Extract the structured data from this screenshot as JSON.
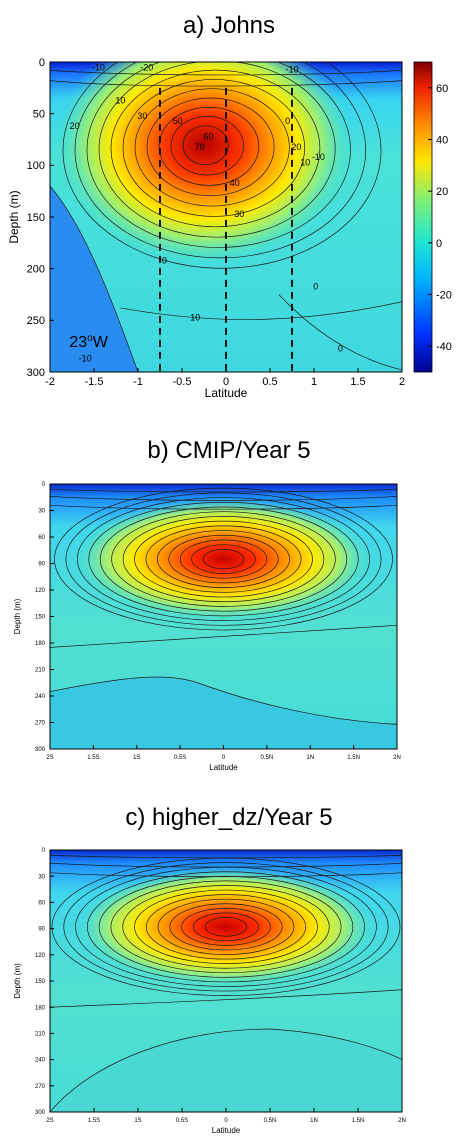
{
  "chart_data": [
    {
      "type": "heatmap",
      "subtype": "filled-contour",
      "title": "a) Johns",
      "xlabel": "Latitude",
      "ylabel": "Depth (m)",
      "xlim": [
        -2,
        2
      ],
      "ylim": [
        300,
        0
      ],
      "x_ticks": [
        "-2",
        "-1.5",
        "-1",
        "-0.5",
        "0",
        "0.5",
        "1",
        "1.5",
        "2"
      ],
      "y_ticks": [
        "0",
        "50",
        "100",
        "150",
        "200",
        "250",
        "300"
      ],
      "colorbar": {
        "ticks": [
          "60",
          "40",
          "20",
          "0",
          "-20",
          "-40"
        ],
        "range": [
          -50,
          70
        ]
      },
      "core": {
        "lat": -0.25,
        "depth": 80,
        "value": 70
      },
      "contour_labels": [
        "-10",
        "-20",
        "-10",
        "10",
        "30",
        "50",
        "60",
        "70",
        "40",
        "30",
        "20",
        "10",
        "0",
        "-10",
        "20",
        "10",
        "0",
        "0",
        "0",
        "-10"
      ],
      "annotation": "23",
      "annotation_sup": "o",
      "annotation_suffix": "W",
      "reference_lines_lat": [
        -0.75,
        0,
        0.75
      ],
      "grid": false
    },
    {
      "type": "heatmap",
      "subtype": "filled-contour",
      "title": "b) CMIP/Year 5",
      "xlabel": "Latitude",
      "ylabel": "Depth (m)",
      "xlim": [
        -2,
        2
      ],
      "ylim": [
        300,
        0
      ],
      "x_ticks": [
        "2S",
        "1.5S",
        "1S",
        "0.5S",
        "0",
        "0.5N",
        "1N",
        "1.5N",
        "2N"
      ],
      "y_ticks": [
        "0",
        "30",
        "60",
        "90",
        "120",
        "150",
        "180",
        "210",
        "240",
        "270",
        "300"
      ],
      "core": {
        "lat": 0,
        "depth": 85,
        "value": 75
      },
      "grid": false
    },
    {
      "type": "heatmap",
      "subtype": "filled-contour",
      "title": "c) higher_dz/Year 5",
      "xlabel": "Latitude",
      "ylabel": "Depth (m)",
      "xlim": [
        -2,
        2
      ],
      "ylim": [
        300,
        0
      ],
      "x_ticks": [
        "2S",
        "1.5S",
        "1S",
        "0.5S",
        "0",
        "0.5N",
        "1N",
        "1.5N",
        "2N"
      ],
      "y_ticks": [
        "0",
        "30",
        "60",
        "90",
        "120",
        "150",
        "180",
        "210",
        "240",
        "270",
        "300"
      ],
      "core": {
        "lat": 0,
        "depth": 88,
        "value": 75
      },
      "grid": false
    }
  ]
}
